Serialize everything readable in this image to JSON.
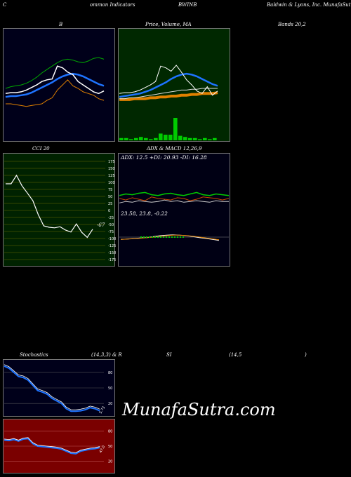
{
  "header": {
    "left": "C",
    "indicators": "ommon  Indicators",
    "symbol": "BWINB",
    "company": "Baldwin  & Lyons, Inc. MunafaSutra.com"
  },
  "titles": {
    "bands_b": "B",
    "price_ma": "Price,  Volume,  MA",
    "bands_right": "Bands 20,2",
    "cci": "CCI 20",
    "adx_macd": "ADX  & MACD 12,26,9",
    "stoch": "Stochastics",
    "stoch_params": "(14,3,3) & R",
    "rsi": "SI",
    "rsi_params": "(14,5",
    "rsi_close": ")"
  },
  "adx_text": "ADX: 12.5  +DI: 20.93  -DI: 16.28",
  "macd_text": "23.58,  23.8,  -0.22",
  "cci_value": "-67",
  "stoch_value": "5.73",
  "rsi_value": "47.0",
  "watermark": "MunafaSutra.com",
  "cci_ticks": [
    "175",
    "150",
    "125",
    "100",
    "75",
    "50",
    "25",
    "0",
    "-25",
    "-50",
    "-75",
    "-100",
    "-125",
    "-150",
    "-175"
  ],
  "stoch_ticks": [
    "80",
    "50",
    "20"
  ],
  "rsi_ticks": [
    "80",
    "50",
    "20"
  ],
  "colors": {
    "bb_bg": "#00001a",
    "price_bg": "#002800",
    "cci_bg": "#002200",
    "adx_bg": "#000014",
    "stoch_bg": "#00001a",
    "rsi_bg": "#7a0000",
    "blue": "#1e73ff",
    "green": "#00cc00",
    "orange": "#e08000"
  },
  "chart_data": [
    {
      "type": "line",
      "title": "B",
      "series": [
        {
          "values": [
            30,
            31,
            31,
            32,
            34,
            37,
            40,
            44,
            46,
            47,
            62,
            60,
            55,
            52,
            44,
            40,
            36,
            32,
            30,
            33
          ]
        },
        {
          "values": [
            26,
            27,
            27,
            28,
            29,
            31,
            34,
            37,
            40,
            43,
            47,
            50,
            52,
            53,
            52,
            50,
            47,
            44,
            41,
            39
          ]
        },
        {
          "values": [
            18,
            18,
            17,
            16,
            15,
            16,
            17,
            18,
            22,
            25,
            34,
            40,
            46,
            39,
            36,
            32,
            30,
            28,
            24,
            22
          ]
        },
        {
          "values": [
            36,
            38,
            39,
            40,
            42,
            45,
            49,
            54,
            58,
            62,
            66,
            69,
            70,
            69,
            67,
            66,
            68,
            71,
            72,
            70
          ]
        }
      ]
    },
    {
      "type": "line",
      "title": "Price,  Volume,  MA",
      "series": [
        {
          "values": [
            30,
            31,
            31,
            32,
            34,
            37,
            40,
            44,
            62,
            60,
            56,
            63,
            55,
            46,
            40,
            33,
            30,
            38,
            28,
            33
          ]
        },
        {
          "values": [
            26,
            27,
            28,
            29,
            30,
            32,
            34,
            37,
            40,
            43,
            47,
            50,
            52,
            53,
            52,
            50,
            47,
            44,
            41,
            39
          ]
        },
        {
          "values": [
            24,
            24,
            25,
            25,
            26,
            27,
            28,
            29,
            30,
            31,
            32,
            33,
            34,
            34,
            35,
            35,
            36,
            36,
            36,
            36
          ]
        },
        {
          "values": [
            23,
            23,
            23,
            24,
            24,
            24,
            25,
            25,
            26,
            26,
            27,
            27,
            28,
            28,
            29,
            29,
            30,
            30,
            30,
            31
          ]
        }
      ],
      "volume": [
        2,
        2,
        1,
        2,
        3,
        2,
        1,
        2,
        6,
        5,
        5,
        20,
        4,
        3,
        2,
        2,
        1,
        2,
        1,
        2
      ]
    },
    {
      "type": "line",
      "title": "CCI 20",
      "ylim": [
        -175,
        175
      ],
      "values": [
        95,
        95,
        125,
        88,
        62,
        35,
        -15,
        -55,
        -60,
        -62,
        -58,
        -70,
        -77,
        -48,
        -78,
        -96,
        -67
      ]
    },
    {
      "type": "line",
      "title": "ADX  & MACD 12,26,9",
      "adx": 12.5,
      "plus_di": 20.93,
      "minus_di": 16.28,
      "macd": 23.58,
      "signal": 23.8,
      "histogram": -0.22
    },
    {
      "type": "line",
      "title": "Stochastics (14,3,3)",
      "ylim": [
        0,
        100
      ],
      "values": [
        92,
        88,
        80,
        72,
        70,
        65,
        55,
        45,
        42,
        38,
        30,
        25,
        20,
        10,
        5,
        5,
        6,
        8,
        12,
        10,
        6
      ]
    },
    {
      "type": "line",
      "title": "RSI (14,5)",
      "ylim": [
        0,
        100
      ],
      "values": [
        62,
        61,
        63,
        60,
        64,
        65,
        55,
        50,
        49,
        48,
        47,
        46,
        44,
        40,
        36,
        35,
        40,
        42,
        44,
        45,
        47
      ]
    }
  ]
}
